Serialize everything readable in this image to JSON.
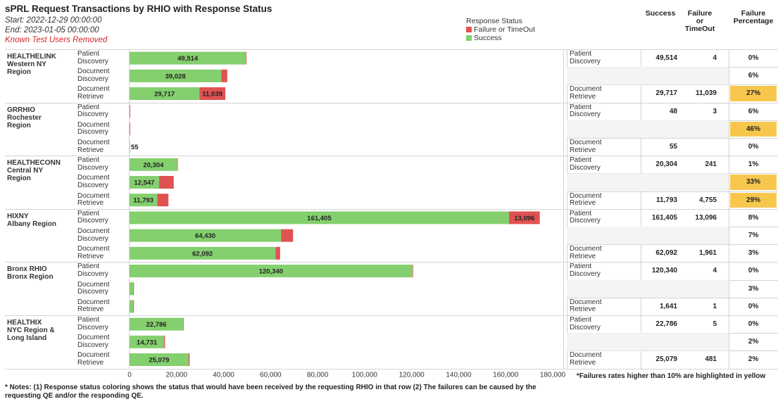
{
  "header": {
    "title": "sPRL Request Transactions by RHIO with Response Status",
    "start": "Start: 2022-12-29 00:00:00",
    "end": "End: 2023-01-05 00:00:00",
    "note_users": "Known Test Users Removed"
  },
  "legend": {
    "title": "Response Status",
    "items": [
      {
        "label": "Failure or TimeOut",
        "color": "#e05252"
      },
      {
        "label": "Success",
        "color": "#84cf6e"
      }
    ]
  },
  "table_headers": {
    "success": "Success",
    "failure": "Failure\nor\nTimeOut",
    "pct": "Failure\nPercentage"
  },
  "chart_data": {
    "type": "bar",
    "orientation": "horizontal",
    "stacked": true,
    "title": "sPRL Request Transactions by RHIO with Response Status",
    "xlim": [
      0,
      180000
    ],
    "x_ticks": [
      "0",
      "20,000",
      "40,000",
      "60,000",
      "80,000",
      "100,000",
      "120,000",
      "140,000",
      "160,000",
      "180,000"
    ],
    "series": [
      {
        "name": "Success",
        "color": "#84cf6e"
      },
      {
        "name": "Failure or TimeOut",
        "color": "#e05252"
      }
    ],
    "groups": [
      {
        "region": "HEALTHELINK\nWestern NY\nRegion",
        "rows": [
          {
            "type": "Patient\nDiscovery",
            "success": 49514,
            "failure": 4,
            "success_label": "49,514",
            "failure_label": "4",
            "pct": "0%",
            "highlight": false,
            "show_success_label": true,
            "show_failure_label": false
          },
          {
            "type": "Document\nDiscovery",
            "success": 39028,
            "failure": 2531,
            "success_label": "39,028",
            "failure_label": "2,531",
            "pct": "6%",
            "highlight": false,
            "show_success_label": true,
            "show_failure_label": false
          },
          {
            "type": "Document\nRetrieve",
            "success": 29717,
            "failure": 11039,
            "success_label": "29,717",
            "failure_label": "11,039",
            "pct": "27%",
            "highlight": true,
            "show_success_label": true,
            "show_failure_label": true
          }
        ]
      },
      {
        "region": "GRRHIO\nRochester\nRegion",
        "rows": [
          {
            "type": "Patient\nDiscovery",
            "success": 48,
            "failure": 3,
            "success_label": "48",
            "failure_label": "3",
            "pct": "6%",
            "highlight": false,
            "show_success_label": false,
            "show_failure_label": false
          },
          {
            "type": "Document\nDiscovery",
            "success": 26,
            "failure": 22,
            "success_label": "26",
            "failure_label": "22",
            "pct": "46%",
            "highlight": true,
            "show_success_label": false,
            "show_failure_label": false
          },
          {
            "type": "Document\nRetrieve",
            "success": 55,
            "failure": 0,
            "success_label": "55",
            "failure_label": "",
            "pct": "0%",
            "highlight": false,
            "show_success_label": true,
            "show_failure_label": false
          }
        ]
      },
      {
        "region": "HEALTHECONN\nCentral NY\nRegion",
        "rows": [
          {
            "type": "Patient\nDiscovery",
            "success": 20304,
            "failure": 241,
            "success_label": "20,304",
            "failure_label": "241",
            "pct": "1%",
            "highlight": false,
            "show_success_label": true,
            "show_failure_label": false
          },
          {
            "type": "Document\nDiscovery",
            "success": 12547,
            "failure": 6250,
            "success_label": "12,547",
            "failure_label": "6,250",
            "pct": "33%",
            "highlight": true,
            "show_success_label": true,
            "show_failure_label": false
          },
          {
            "type": "Document\nRetrieve",
            "success": 11793,
            "failure": 4755,
            "success_label": "11,793",
            "failure_label": "4,755",
            "pct": "29%",
            "highlight": true,
            "show_success_label": true,
            "show_failure_label": false
          }
        ]
      },
      {
        "region": "HIXNY\nAlbany Region",
        "rows": [
          {
            "type": "Patient\nDiscovery",
            "success": 161405,
            "failure": 13096,
            "success_label": "161,405",
            "failure_label": "13,096",
            "pct": "8%",
            "highlight": false,
            "show_success_label": true,
            "show_failure_label": true
          },
          {
            "type": "Document\nDiscovery",
            "success": 64430,
            "failure": 5134,
            "success_label": "64,430",
            "failure_label": "5,134",
            "pct": "7%",
            "highlight": false,
            "show_success_label": true,
            "show_failure_label": false
          },
          {
            "type": "Document\nRetrieve",
            "success": 62092,
            "failure": 1961,
            "success_label": "62,092",
            "failure_label": "1,961",
            "pct": "3%",
            "highlight": false,
            "show_success_label": true,
            "show_failure_label": false
          }
        ]
      },
      {
        "region": "Bronx RHIO\nBronx Region",
        "rows": [
          {
            "type": "Patient\nDiscovery",
            "success": 120340,
            "failure": 4,
            "success_label": "120,340",
            "failure_label": "4",
            "pct": "0%",
            "highlight": false,
            "show_success_label": true,
            "show_failure_label": false
          },
          {
            "type": "Document\nDiscovery",
            "success": 1639,
            "failure": 50,
            "success_label": "1,639",
            "failure_label": "50",
            "pct": "3%",
            "highlight": false,
            "show_success_label": false,
            "show_failure_label": false
          },
          {
            "type": "Document\nRetrieve",
            "success": 1641,
            "failure": 1,
            "success_label": "1,641",
            "failure_label": "1",
            "pct": "0%",
            "highlight": false,
            "show_success_label": false,
            "show_failure_label": false
          }
        ]
      },
      {
        "region": "HEALTHIX\nNYC Region &\nLong Island",
        "rows": [
          {
            "type": "Patient\nDiscovery",
            "success": 22786,
            "failure": 5,
            "success_label": "22,786",
            "failure_label": "5",
            "pct": "0%",
            "highlight": false,
            "show_success_label": true,
            "show_failure_label": false
          },
          {
            "type": "Document\nDiscovery",
            "success": 14731,
            "failure": 369,
            "success_label": "14,731",
            "failure_label": "369",
            "pct": "2%",
            "highlight": false,
            "show_success_label": true,
            "show_failure_label": false
          },
          {
            "type": "Document\nRetrieve",
            "success": 25079,
            "failure": 481,
            "success_label": "25,079",
            "failure_label": "481",
            "pct": "2%",
            "highlight": false,
            "show_success_label": true,
            "show_failure_label": false
          }
        ]
      }
    ]
  },
  "footer": {
    "notes": "* Notes: (1) Response status coloring shows the status that would have been received by the requesting RHIO in that row (2) The failures can be caused by the requesting QE and/or the responding QE.",
    "highlight_note": "*Failures rates higher than 10% are highlighted in yellow"
  }
}
